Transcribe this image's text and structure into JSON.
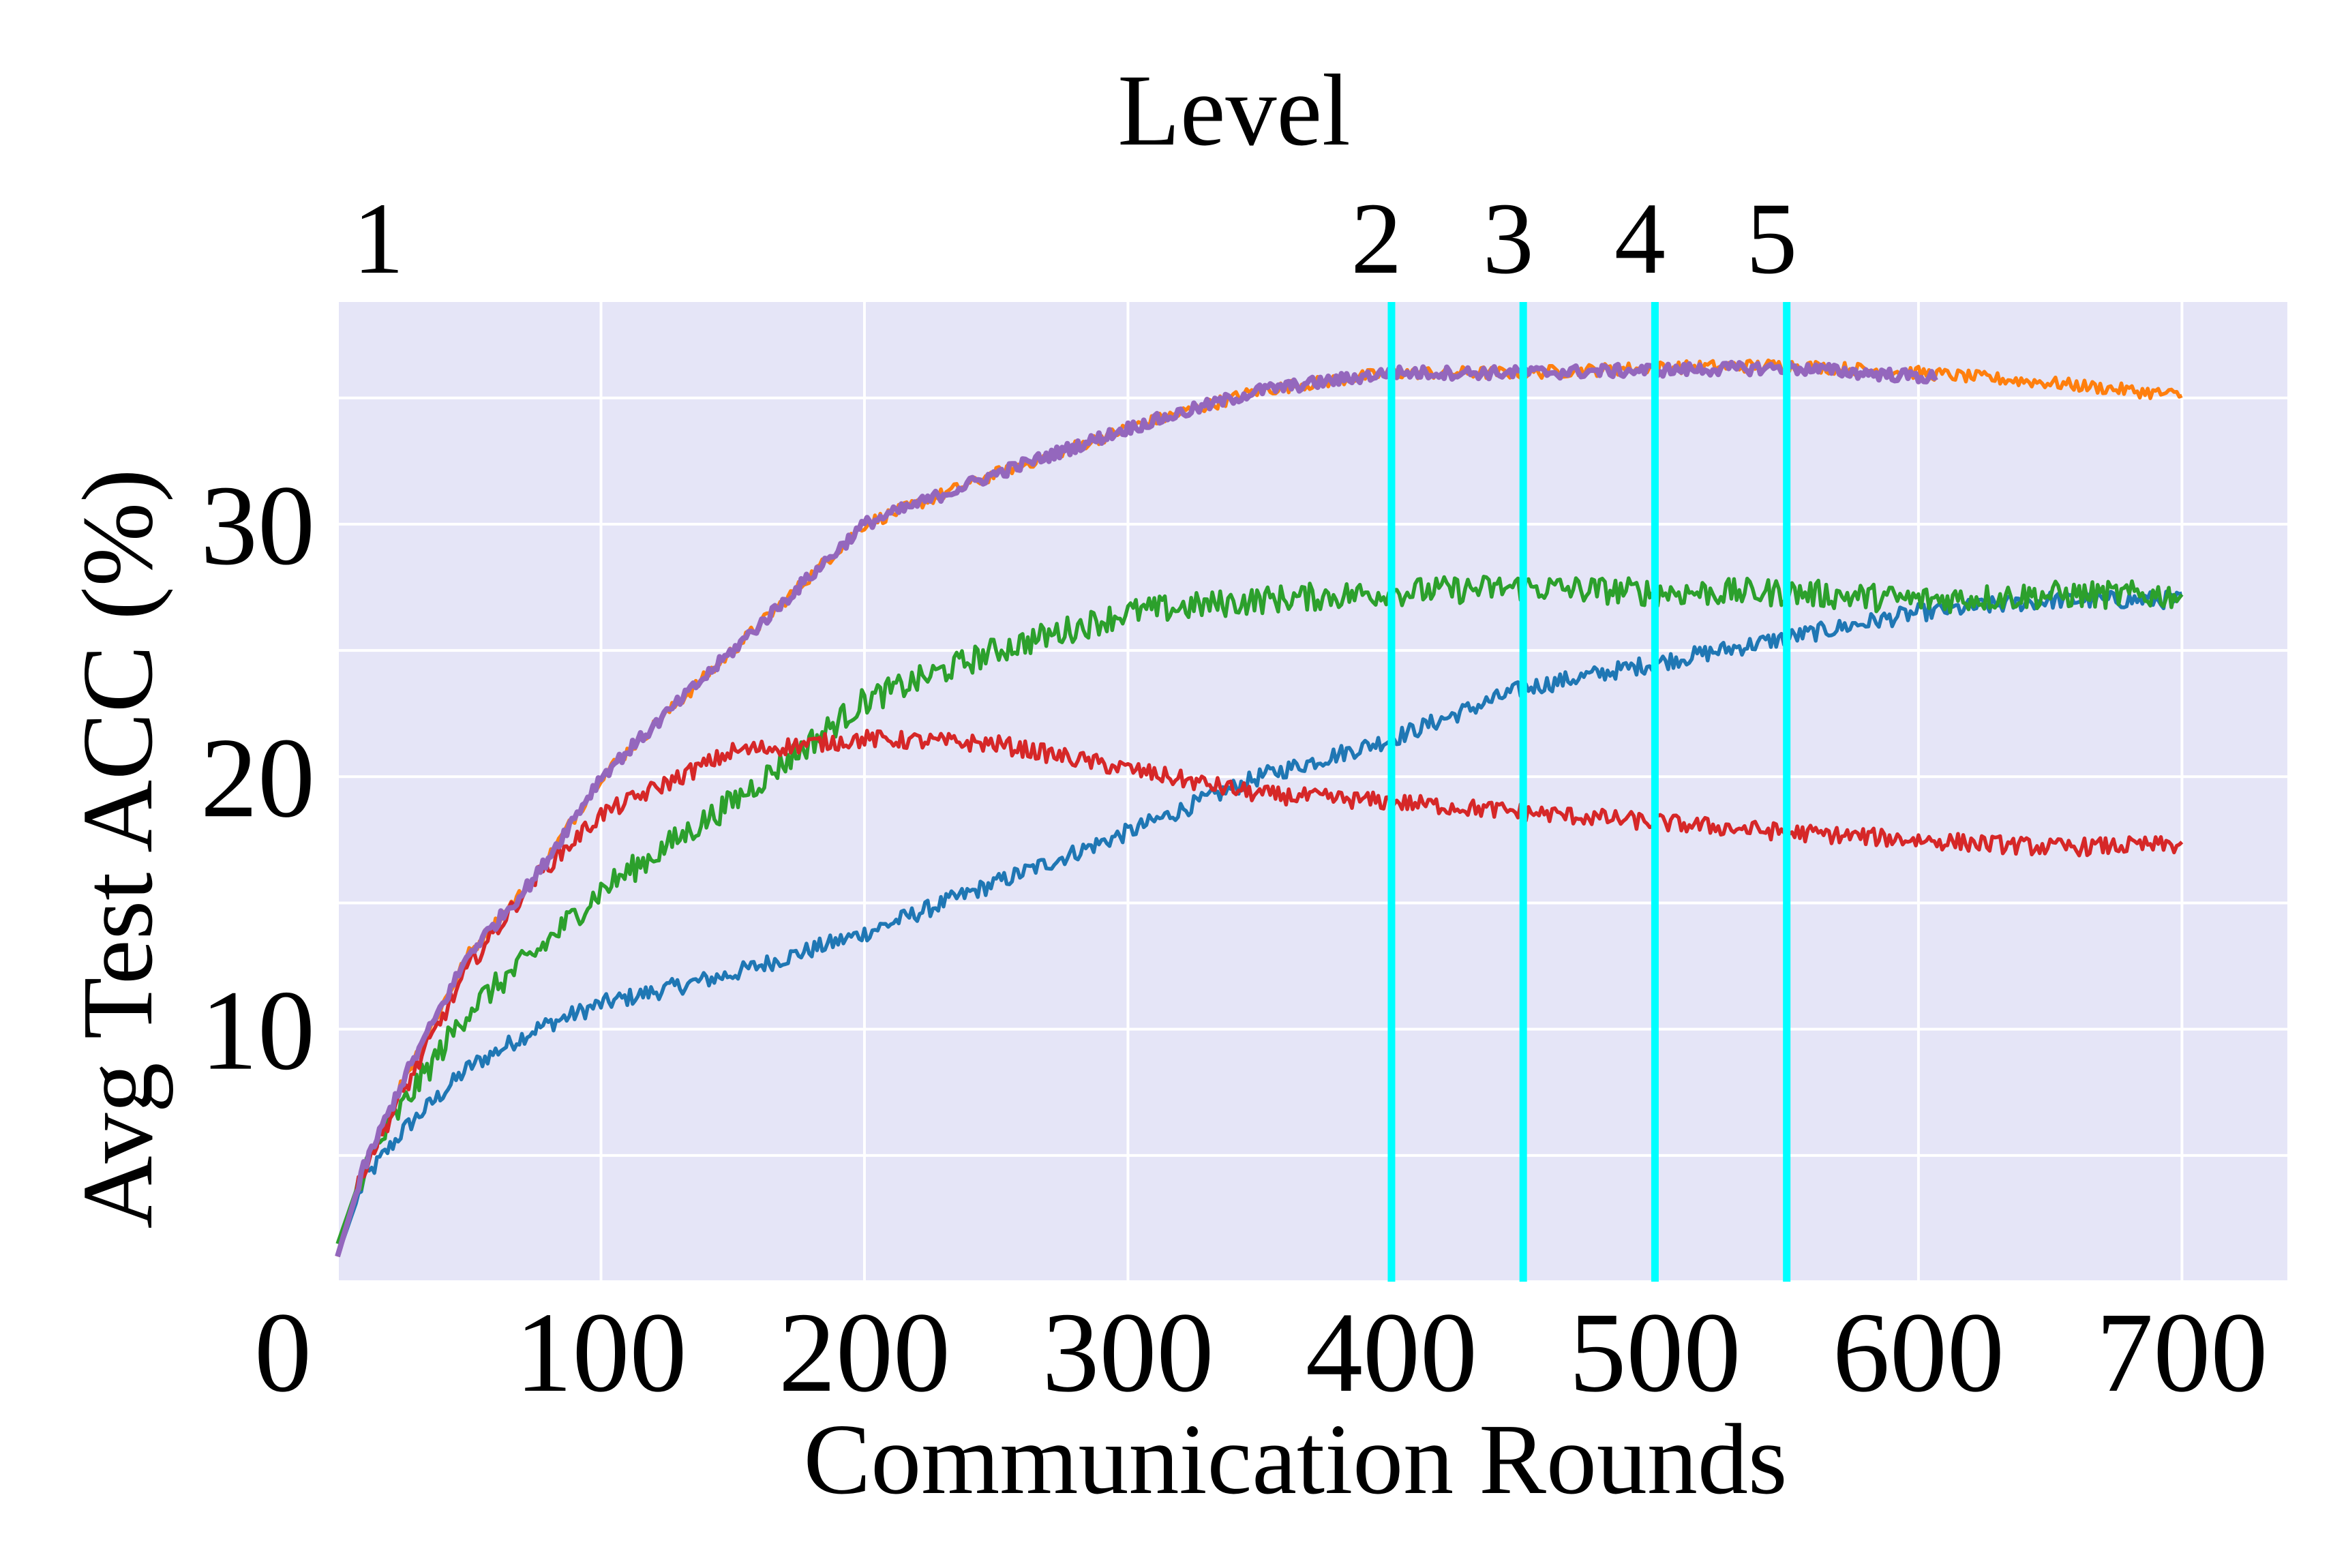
{
  "chart_data": {
    "type": "line",
    "xlabel": "Communication Rounds",
    "ylabel": "Avg Test ACC (%)",
    "xlim": [
      0,
      740
    ],
    "ylim": [
      0,
      38.8
    ],
    "xticks": [
      0,
      100,
      200,
      300,
      400,
      500,
      600,
      700
    ],
    "yticks": [
      0,
      10,
      20,
      30
    ],
    "ygrid_minor": [
      5,
      15,
      25,
      35
    ],
    "grid": true,
    "background": "#e5e5f7",
    "top_axis": {
      "title": "Level",
      "levels": [
        {
          "label": "1",
          "x": 0
        },
        {
          "label": "2",
          "x": 400
        },
        {
          "label": "3",
          "x": 450
        },
        {
          "label": "4",
          "x": 500
        },
        {
          "label": "5",
          "x": 550
        }
      ],
      "marker_color": "#00ffff"
    },
    "series": [
      {
        "color": "#1f77b4",
        "points": [
          [
            0,
            1
          ],
          [
            10,
            4
          ],
          [
            25,
            6
          ],
          [
            50,
            8.5
          ],
          [
            75,
            10
          ],
          [
            100,
            11
          ],
          [
            150,
            12.2
          ],
          [
            200,
            13.8
          ],
          [
            250,
            15.8
          ],
          [
            300,
            17.8
          ],
          [
            350,
            20
          ],
          [
            400,
            21.5
          ],
          [
            450,
            23.5
          ],
          [
            500,
            24.5
          ],
          [
            550,
            25.5
          ],
          [
            600,
            26.5
          ],
          [
            650,
            27
          ],
          [
            700,
            27
          ]
        ]
      },
      {
        "color": "#ff7f0e",
        "points": [
          [
            0,
            1
          ],
          [
            10,
            4.5
          ],
          [
            25,
            8
          ],
          [
            50,
            13
          ],
          [
            75,
            16
          ],
          [
            100,
            20
          ],
          [
            150,
            25
          ],
          [
            200,
            30
          ],
          [
            250,
            32
          ],
          [
            300,
            33.8
          ],
          [
            350,
            35.3
          ],
          [
            400,
            36
          ],
          [
            450,
            36
          ],
          [
            500,
            36.2
          ],
          [
            550,
            36.3
          ],
          [
            600,
            36
          ],
          [
            650,
            35.6
          ],
          [
            700,
            35.1
          ]
        ]
      },
      {
        "color": "#2ca02c",
        "points": [
          [
            0,
            1.5
          ],
          [
            10,
            4.5
          ],
          [
            25,
            7
          ],
          [
            50,
            10.8
          ],
          [
            75,
            13
          ],
          [
            100,
            15.5
          ],
          [
            150,
            19
          ],
          [
            200,
            23
          ],
          [
            250,
            25
          ],
          [
            300,
            26.5
          ],
          [
            350,
            27
          ],
          [
            400,
            27.3
          ],
          [
            450,
            27.5
          ],
          [
            500,
            27.3
          ],
          [
            550,
            27.3
          ],
          [
            600,
            27
          ],
          [
            650,
            27.2
          ],
          [
            700,
            27.2
          ]
        ]
      },
      {
        "color": "#d62728",
        "points": [
          [
            0,
            1
          ],
          [
            10,
            4.5
          ],
          [
            25,
            7.5
          ],
          [
            50,
            12.5
          ],
          [
            75,
            16
          ],
          [
            100,
            18.5
          ],
          [
            150,
            21
          ],
          [
            200,
            21.5
          ],
          [
            250,
            21.3
          ],
          [
            300,
            20.3
          ],
          [
            350,
            19.3
          ],
          [
            400,
            19
          ],
          [
            450,
            18.6
          ],
          [
            500,
            18.2
          ],
          [
            550,
            17.8
          ],
          [
            600,
            17.5
          ],
          [
            650,
            17.2
          ],
          [
            700,
            17.3
          ]
        ]
      },
      {
        "color": "#9467bd",
        "points": [
          [
            0,
            1
          ],
          [
            10,
            4.5
          ],
          [
            25,
            8
          ],
          [
            50,
            13
          ],
          [
            75,
            16
          ],
          [
            100,
            20
          ],
          [
            150,
            25
          ],
          [
            200,
            30
          ],
          [
            250,
            32
          ],
          [
            300,
            33.8
          ],
          [
            350,
            35.3
          ],
          [
            400,
            36
          ],
          [
            450,
            36
          ],
          [
            500,
            36.1
          ],
          [
            550,
            36.2
          ],
          [
            607,
            35.8
          ]
        ]
      }
    ]
  }
}
